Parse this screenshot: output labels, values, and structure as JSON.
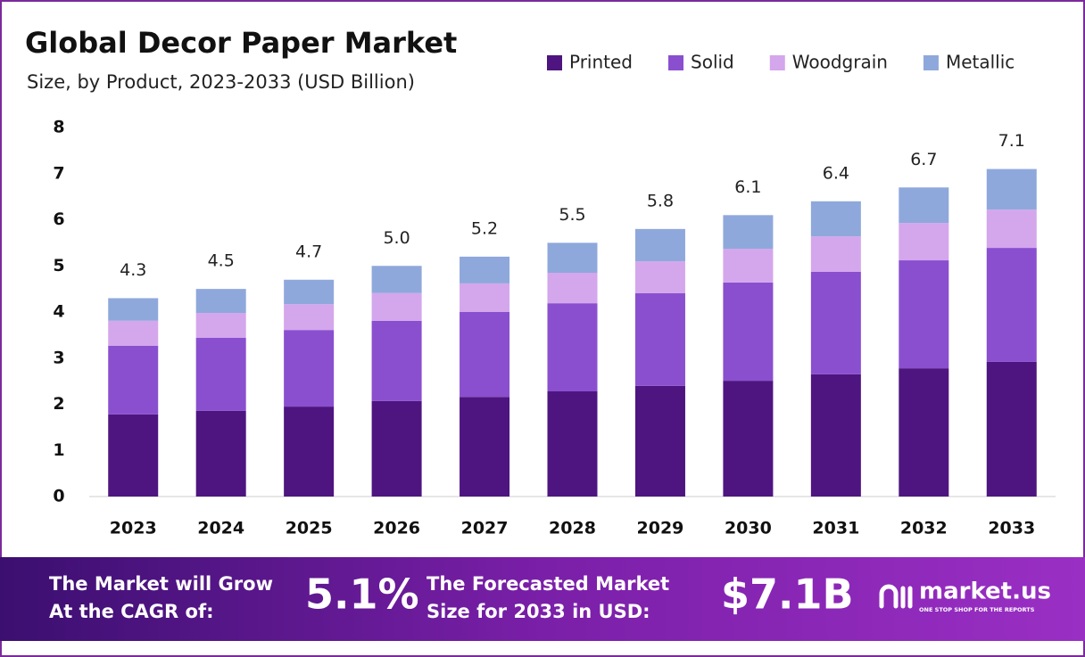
{
  "chart_data": {
    "type": "stacked_bar",
    "title": "Global Decor Paper Market",
    "subtitle": "Size, by Product, 2023-2033 (USD Billion)",
    "categories": [
      "2023",
      "2024",
      "2025",
      "2026",
      "2027",
      "2028",
      "2029",
      "2030",
      "2031",
      "2032",
      "2033"
    ],
    "series": [
      {
        "name": "Printed",
        "color": "#4e1580",
        "values": [
          1.78,
          1.86,
          1.95,
          2.07,
          2.16,
          2.28,
          2.4,
          2.51,
          2.65,
          2.78,
          2.92
        ]
      },
      {
        "name": "Solid",
        "color": "#8a4fcf",
        "values": [
          1.49,
          1.58,
          1.66,
          1.74,
          1.84,
          1.91,
          2.01,
          2.13,
          2.22,
          2.34,
          2.47
        ]
      },
      {
        "name": "Woodgrain",
        "color": "#d4a6ec",
        "values": [
          0.54,
          0.54,
          0.56,
          0.6,
          0.62,
          0.66,
          0.69,
          0.73,
          0.77,
          0.81,
          0.83
        ]
      },
      {
        "name": "Metallic",
        "color": "#8fa8dc",
        "values": [
          0.49,
          0.52,
          0.53,
          0.59,
          0.58,
          0.65,
          0.7,
          0.73,
          0.76,
          0.77,
          0.88
        ]
      }
    ],
    "totals": {
      "values": [
        4.3,
        4.5,
        4.7,
        5.0,
        5.2,
        5.5,
        5.8,
        6.1,
        6.4,
        6.7,
        7.1
      ],
      "value_labels": [
        "4.3",
        "4.5",
        "4.7",
        "5.0",
        "5.2",
        "5.5",
        "5.8",
        "6.1",
        "6.4",
        "6.7",
        "7.1"
      ]
    },
    "ylim": [
      0,
      8
    ],
    "yticks": [
      0,
      1,
      2,
      3,
      4,
      5,
      6,
      7,
      8
    ],
    "grid": false,
    "legend": "top"
  },
  "footer": {
    "cagr_text": [
      "The Market will Grow",
      "At the CAGR of:"
    ],
    "cagr": "5.1%",
    "forecast_text": [
      "The Forecasted Market",
      "Size for 2033 in USD:"
    ],
    "forecast": "$7.1B",
    "brand": "market.us",
    "tagline": "ONE STOP SHOP FOR THE REPORTS"
  }
}
